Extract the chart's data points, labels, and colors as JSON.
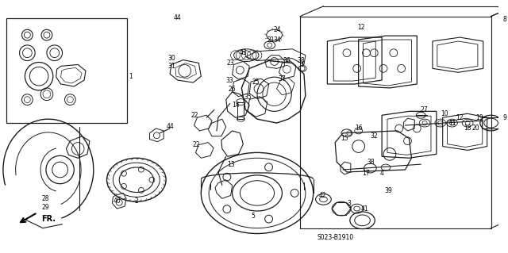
{
  "bg_color": "#ffffff",
  "line_color": "#1a1a1a",
  "fig_width": 6.4,
  "fig_height": 3.19,
  "dpi": 100,
  "watermark": "S023-B1910",
  "fr_label": "FR."
}
